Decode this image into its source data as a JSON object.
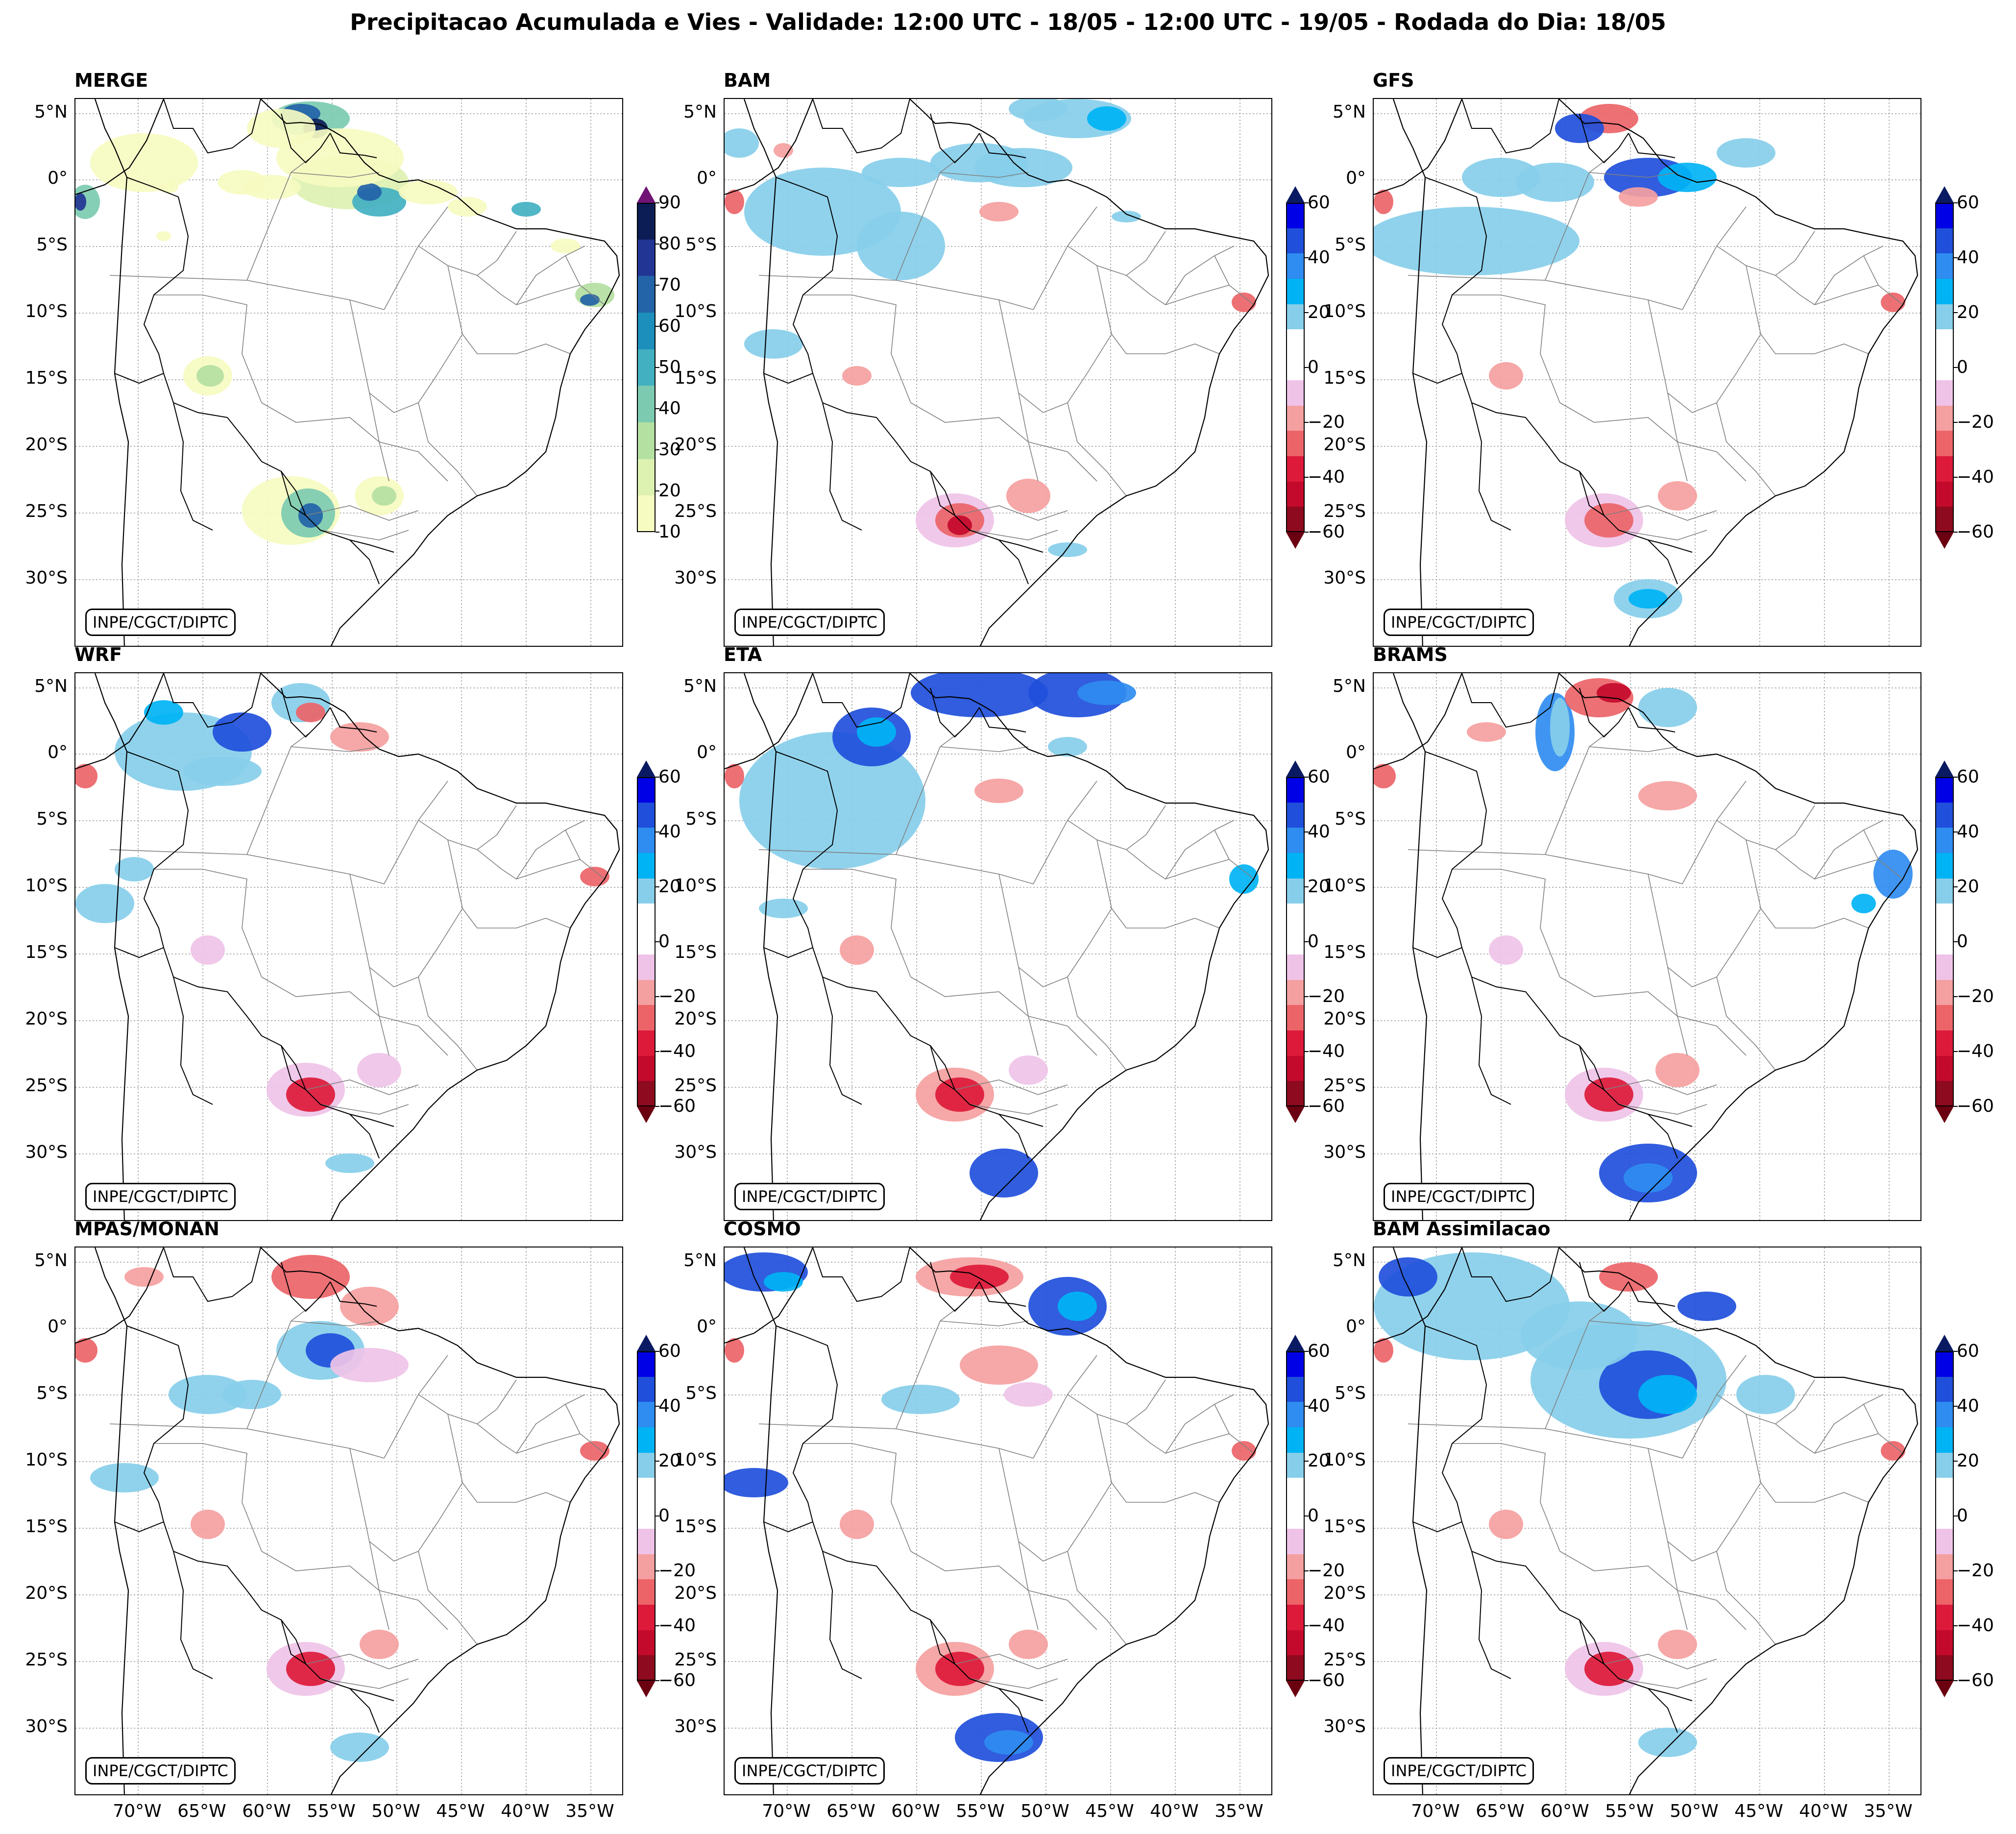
{
  "title": "Precipitacao Acumulada e Vies - Validade: 12:00 UTC - 18/05 - 12:00 UTC - 19/05 - Rodada do Dia: 18/05",
  "credit": "INPE/CGCT/DIPTC",
  "lat_labels": [
    "5°N",
    "0°",
    "5°S",
    "10°S",
    "15°S",
    "20°S",
    "25°S",
    "30°S"
  ],
  "lon_labels": [
    "70°W",
    "65°W",
    "60°W",
    "55°W",
    "50°W",
    "45°W",
    "40°W",
    "35°W"
  ],
  "colorbars": {
    "precip": {
      "ticks": [
        "90",
        "80",
        "70",
        "60",
        "50",
        "40",
        "30",
        "20",
        "10"
      ],
      "colors": [
        "#f6fbc1",
        "#ddf1b1",
        "#b4e0a1",
        "#7ccbb1",
        "#42b0c1",
        "#1d8fbd",
        "#2363a8",
        "#233594",
        "#0c1d55"
      ],
      "over_color": "#701476",
      "under_color": "#ffffff"
    },
    "bias": {
      "ticks": [
        "60",
        "40",
        "20",
        "0",
        "−20",
        "−40",
        "−60"
      ],
      "colors_top_to_bottom": [
        "#0000e6",
        "#1f4fdb",
        "#2f8cf0",
        "#00b3f5",
        "#87ceea",
        "#ffffff",
        "#ffffff",
        "#efc3e8",
        "#f5a0a0",
        "#ec6468",
        "#dd1a3a",
        "#c40a2c",
        "#8e0a1e"
      ],
      "over_color": "#0a1a62",
      "under_color": "#6b0011"
    }
  },
  "panels": [
    {
      "id": "merge",
      "title": "MERGE",
      "kind": "precip"
    },
    {
      "id": "bam",
      "title": "BAM",
      "kind": "bias"
    },
    {
      "id": "gfs",
      "title": "GFS",
      "kind": "bias"
    },
    {
      "id": "wrf",
      "title": "WRF",
      "kind": "bias"
    },
    {
      "id": "eta",
      "title": "ETA",
      "kind": "bias"
    },
    {
      "id": "brams",
      "title": "BRAMS",
      "kind": "bias"
    },
    {
      "id": "mpas",
      "title": "MPAS/MONAN",
      "kind": "bias"
    },
    {
      "id": "cosmo",
      "title": "COSMO",
      "kind": "bias"
    },
    {
      "id": "bamassim",
      "title": "BAM Assimilacao",
      "kind": "bias"
    }
  ]
}
